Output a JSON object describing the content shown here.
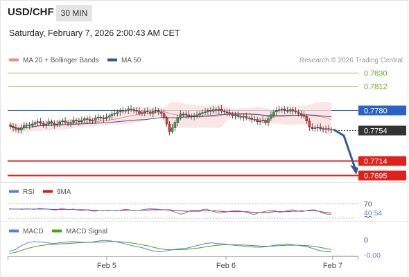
{
  "header": {
    "pair": "USD/CHF",
    "timeframe": "30 MIN",
    "datetime": "Saturday, February 7, 2026 2:00:43 AM CET"
  },
  "colors": {
    "green_level": "#6aaa1e",
    "blue_level": "#2b62c9",
    "red_level": "#e0201b",
    "current": "#333333",
    "bull": "#43a047",
    "bear": "#e53935",
    "band": "#fadcdc",
    "ma20": "#f08c8c",
    "ma50": "#34568b",
    "arrow": "#2f5d99",
    "rsi": "#5b7fd6",
    "ma9": "#d21a1a",
    "macd": "#5b7fd6",
    "signal": "#4aa020"
  },
  "chart_data": [
    {
      "type": "candlestick",
      "title": "",
      "legend": [
        {
          "name": "MA 20 + Bollinger Bands",
          "color": "#f08c8c"
        },
        {
          "name": "MA 50",
          "color": "#34568b"
        }
      ],
      "source": "Research © 2026 Trading Central",
      "x_ticks": [
        "Feb 5",
        "Feb 6",
        "Feb 7"
      ],
      "levels": [
        {
          "value": 0.783,
          "label": "0.7830",
          "kind": "resistance",
          "color": "#6aaa1e"
        },
        {
          "value": 0.7812,
          "label": "0.7812",
          "kind": "resistance",
          "color": "#6aaa1e"
        },
        {
          "value": 0.778,
          "label": "0.7780",
          "kind": "pivot",
          "color": "#2b62c9"
        },
        {
          "value": 0.7754,
          "label": "0.7754",
          "kind": "last",
          "color": "#333333"
        },
        {
          "value": 0.7714,
          "label": "0.7714",
          "kind": "support",
          "color": "#e0201b"
        },
        {
          "value": 0.7695,
          "label": "0.7695",
          "kind": "support",
          "color": "#e0201b"
        }
      ],
      "close": [
        0.7759,
        0.7757,
        0.7755,
        0.7754,
        0.7757,
        0.776,
        0.7761,
        0.776,
        0.7762,
        0.7764,
        0.7765,
        0.7763,
        0.7761,
        0.7762,
        0.7765,
        0.7763,
        0.7761,
        0.7762,
        0.7765,
        0.7766,
        0.7764,
        0.7763,
        0.7764,
        0.7767,
        0.7766,
        0.7765,
        0.7767,
        0.7769,
        0.7768,
        0.7766,
        0.7767,
        0.777,
        0.7771,
        0.777,
        0.7769,
        0.7771,
        0.7773,
        0.7775,
        0.7776,
        0.7778,
        0.7779,
        0.778,
        0.778,
        0.7782,
        0.7781,
        0.778,
        0.7779,
        0.7776,
        0.7777,
        0.7779,
        0.7778,
        0.7776,
        0.7779,
        0.778,
        0.7778,
        0.7776,
        0.777,
        0.7762,
        0.7752,
        0.7757,
        0.7764,
        0.777,
        0.7775,
        0.7775,
        0.7774,
        0.7772,
        0.7773,
        0.7772,
        0.7774,
        0.7776,
        0.7777,
        0.7778,
        0.778,
        0.7779,
        0.7781,
        0.778,
        0.7782,
        0.7779,
        0.7778,
        0.7777,
        0.7775,
        0.7773,
        0.7774,
        0.7772,
        0.7771,
        0.7772,
        0.777,
        0.777,
        0.7768,
        0.7768,
        0.7765,
        0.7766,
        0.7767,
        0.7764,
        0.7769,
        0.7774,
        0.7778,
        0.778,
        0.7781,
        0.7782,
        0.778,
        0.7779,
        0.7781,
        0.7779,
        0.7778,
        0.7776,
        0.7774,
        0.7772,
        0.7766,
        0.7758,
        0.7756,
        0.7757,
        0.7758,
        0.7756,
        0.7755,
        0.7756,
        0.7755,
        0.7754
      ]
    },
    {
      "type": "line",
      "title": "",
      "legend": [
        {
          "name": "RSI",
          "color": "#5b7fd6"
        },
        {
          "name": "9MA",
          "color": "#d21a1a"
        }
      ],
      "levels": [
        {
          "value": 70,
          "label": "70"
        },
        {
          "value": 30,
          "label": "30"
        }
      ],
      "value_labels": [
        "40.54"
      ],
      "rsi": [
        56,
        55,
        55,
        54,
        56,
        55,
        54,
        57,
        56,
        55,
        53,
        52,
        56,
        55,
        53,
        55,
        52,
        51,
        53,
        50,
        49,
        51,
        50,
        52,
        51,
        50,
        52,
        54,
        53,
        50,
        51,
        53,
        55,
        56,
        55,
        54,
        53,
        52,
        49,
        45,
        41,
        44,
        50,
        52,
        51,
        53,
        55,
        50,
        47,
        44,
        46,
        48,
        50,
        51,
        49,
        47,
        43,
        40,
        44,
        47,
        50,
        52,
        50,
        46,
        48,
        51,
        53,
        50,
        48,
        50,
        52,
        53,
        49,
        44,
        41,
        40.54
      ],
      "ma9": [
        55,
        55,
        55,
        55,
        55,
        55,
        55,
        55,
        55,
        55,
        54,
        54,
        54,
        54,
        54,
        54,
        53,
        53,
        53,
        52,
        52,
        51,
        51,
        51,
        51,
        51,
        51,
        52,
        52,
        51,
        51,
        52,
        52,
        53,
        53,
        53,
        53,
        53,
        52,
        51,
        50,
        49,
        49,
        49,
        49,
        50,
        50,
        50,
        50,
        49,
        48,
        48,
        48,
        48,
        48,
        48,
        47,
        46,
        45,
        45,
        46,
        47,
        48,
        48,
        48,
        48,
        49,
        49,
        50,
        50,
        50,
        50,
        49,
        47,
        45,
        44
      ]
    },
    {
      "type": "line",
      "title": "",
      "legend": [
        {
          "name": "MACD",
          "color": "#5b7fd6"
        },
        {
          "name": "MACD Signal",
          "color": "#4aa020"
        }
      ],
      "levels": [
        {
          "value": 0,
          "label": "0"
        }
      ],
      "value_labels": [
        "-0.00"
      ],
      "macd": [
        -0.0004,
        -0.0003,
        -0.0001,
        5e-05,
        0.0001,
        8e-05,
        4e-05,
        0.0,
        4e-05,
        8e-05,
        0.0001,
        8e-05,
        6e-05,
        7e-05,
        0.00012,
        0.00016,
        0.00014,
        8e-05,
        2e-05,
        -6e-05,
        -0.00014,
        -0.0002,
        -0.0003,
        -0.00038,
        -0.0004,
        -0.00036,
        -0.0003,
        -0.00026,
        -0.00024,
        -0.00016,
        -8e-05,
        0.0,
        4e-05,
        0.0,
        -2e-05,
        -6e-05,
        -0.0001,
        -0.00012,
        -0.00016,
        -0.00018,
        -0.00018,
        -0.00014,
        -8e-05,
        -4e-05,
        -2e-05,
        -6e-05,
        -0.0001,
        -0.00014,
        -0.00024,
        -0.00034,
        -0.0004,
        -0.00042
      ],
      "signal": [
        -0.0005,
        -0.00044,
        -0.00034,
        -0.00024,
        -0.00016,
        -0.0001,
        -6e-05,
        -4e-05,
        -2e-05,
        0.0,
        2e-05,
        4e-05,
        5e-05,
        6e-05,
        7e-05,
        9e-05,
        0.0001,
        0.0001,
        8e-05,
        5e-05,
        0.0,
        -5e-05,
        -0.00012,
        -0.0002,
        -0.00026,
        -0.0003,
        -0.00031,
        -0.0003,
        -0.00029,
        -0.00026,
        -0.00022,
        -0.00017,
        -0.00012,
        -8e-05,
        -6e-05,
        -5e-05,
        -6e-05,
        -7e-05,
        -9e-05,
        -0.00011,
        -0.00013,
        -0.00013,
        -0.00012,
        -0.0001,
        -8e-05,
        -8e-05,
        -8e-05,
        -0.0001,
        -0.00013,
        -0.00018,
        -0.00024,
        -0.0003
      ]
    }
  ]
}
